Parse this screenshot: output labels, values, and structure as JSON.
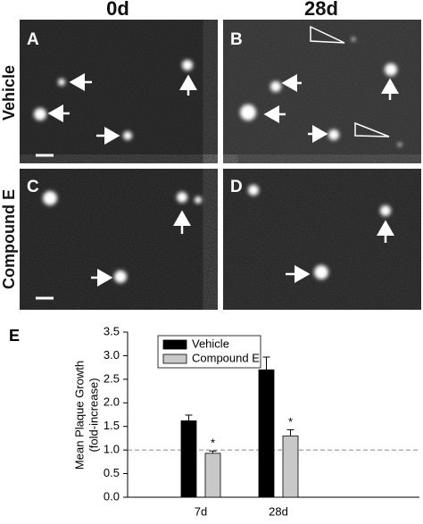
{
  "figure": {
    "columns": [
      "0d",
      "28d"
    ],
    "rows": [
      "Vehicle",
      "Compound E"
    ],
    "panels": [
      "A",
      "B",
      "C",
      "D"
    ],
    "chart_letter": "E"
  },
  "chart_data": {
    "type": "bar",
    "ylabel": [
      "Mean Plaque Growth",
      "(fold-increase)"
    ],
    "categories": [
      "7d",
      "28d"
    ],
    "series": [
      {
        "name": "Vehicle",
        "color": "#000000",
        "values": [
          1.62,
          2.7
        ],
        "errors": [
          0.12,
          0.27
        ]
      },
      {
        "name": "Compound E",
        "color": "#c8c8c8",
        "values": [
          0.93,
          1.3
        ],
        "errors": [
          0.05,
          0.13
        ],
        "annotations": [
          "*",
          "*"
        ]
      }
    ],
    "ylim": [
      0,
      3.5
    ],
    "yticks": [
      {
        "value": 0,
        "label": "0.0"
      },
      {
        "value": 0.5,
        "label": "0.5"
      },
      {
        "value": 1,
        "label": "1.0"
      },
      {
        "value": 1.5,
        "label": "1.5"
      },
      {
        "value": 2,
        "label": "2.0"
      },
      {
        "value": 2.5,
        "label": "2.5"
      },
      {
        "value": 3,
        "label": "3.0"
      },
      {
        "value": 3.5,
        "label": "3.5"
      }
    ],
    "reference_line": 1,
    "legend": "upper-left"
  }
}
